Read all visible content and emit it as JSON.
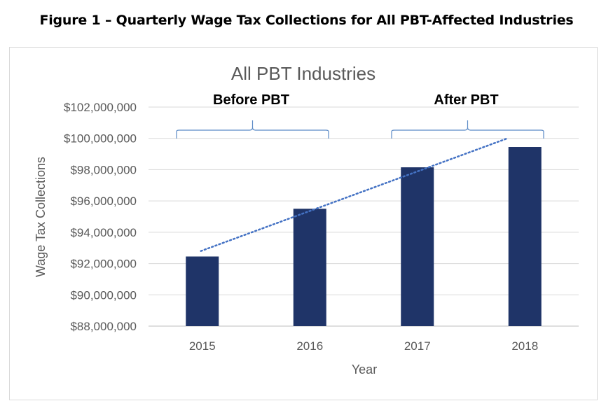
{
  "figure_title": "Figure 1 – Quarterly Wage Tax Collections for All PBT-Affected Industries",
  "chart_data": {
    "type": "bar",
    "title": "All PBT Industries",
    "xlabel": "Year",
    "ylabel": "Wage Tax Collections",
    "categories": [
      "2015",
      "2016",
      "2017",
      "2018"
    ],
    "values": [
      92450000,
      95500000,
      98150000,
      99450000
    ],
    "ylim": [
      88000000,
      102000000
    ],
    "yticks": [
      88000000,
      90000000,
      92000000,
      94000000,
      96000000,
      98000000,
      100000000,
      102000000
    ],
    "ytick_labels": [
      "$88,000,000",
      "$90,000,000",
      "$92,000,000",
      "$94,000,000",
      "$96,000,000",
      "$98,000,000",
      "$100,000,000",
      "$102,000,000"
    ],
    "trendline": {
      "style": "dotted",
      "type": "linear",
      "start": 92800000,
      "end": 100000000
    },
    "annotations": [
      {
        "text": "Before PBT",
        "span": [
          "2015",
          "2016"
        ]
      },
      {
        "text": "After PBT",
        "span": [
          "2017",
          "2018"
        ]
      }
    ],
    "grid": true,
    "legend": "none",
    "colors": {
      "bar": "#1f3468",
      "trend": "#4472c4",
      "grid": "#d9d9d9",
      "brace": "#5b8ac6"
    }
  }
}
